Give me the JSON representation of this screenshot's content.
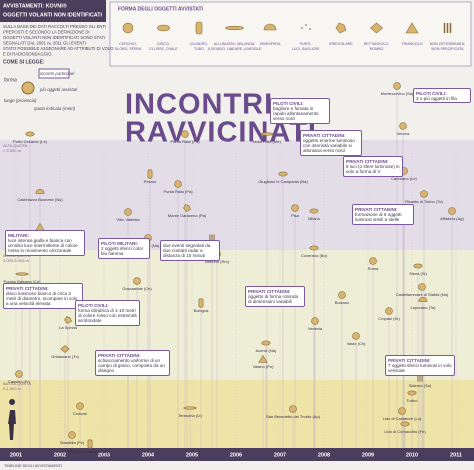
{
  "header": {
    "title_lines": [
      "AVVISTAMENTI: KOVNI®",
      "OGGETTI VOLANTI NON IDENTIFICATI"
    ],
    "intro_lines": [
      "SULLA BASE DEI DATI RACCOLTI PRESSO GLI ENTI",
      "PREPOSTI E SECONDO LA DEFINIZIONE DI",
      "OGGETTI VOLANTI NON IDENTIFICATI SONO STATI",
      "SEGNALATI DAL 2001 AL 2011 GLI EVENTI",
      "STATO POSSIBILE ASSEGNARE AD ATTRIBUTI DI VOLO",
      "E DI RADIOSONDAGGIO."
    ]
  },
  "how_to_read": {
    "title": "COME SI LEGGE:",
    "labels": [
      "forma",
      "incontri particolari",
      "più oggetti avvistati",
      "luogo (provincia)",
      "quota indicata (metri)"
    ]
  },
  "shapes": {
    "title": "FORMA DEGLI OGGETTI AVVISTATI",
    "items": [
      [
        "CERCHIO,",
        "GLOBO, SFERA"
      ],
      [
        "DISCO,",
        "ELLISSE, OVALE"
      ],
      [
        "CILINDRO,",
        "TUBO"
      ],
      [
        "ALLUNGATA, OBLUNGA,",
        "A SIGARO, LINEARE, A MISSILE"
      ],
      [
        "SEMISFERA"
      ],
      [
        "PUNTI,",
        "LUCI, BAGLIORI"
      ],
      [
        "IRREGOLARE"
      ],
      [
        "RETTANGOLO,",
        "ROMBO"
      ],
      [
        "TRIANGOLO"
      ],
      [
        "NON DETERMINATA,",
        "NON SPECIFICATA"
      ]
    ]
  },
  "title": [
    "INCONTRI",
    "RAVVICINATI"
  ],
  "zones": [
    [
      "ALTA QUOTA",
      "> 5.000 m"
    ],
    [
      "MEDIA QUOTA",
      "2.000-5.000 m"
    ],
    [
      "BASSA QUOTA",
      "0-1.000 m"
    ]
  ],
  "timeline": {
    "label": "TIMELINE DEGLI AVVISTAMENTI",
    "years": [
      "2001",
      "2002",
      "2003",
      "2004",
      "2005",
      "2006",
      "2007",
      "2008",
      "2009",
      "2010",
      "2011"
    ]
  },
  "sightings": [
    "Montecorvino (Sa)",
    "Porto Cesareo (Le)",
    "Punta Raisi (Pa)",
    "Isola Folle (Me)",
    "Verona",
    "Pesaro",
    "Punta Raisi (Pa)",
    "Giugliano in Campania (Na)",
    "Carenano (Le)",
    "Castelazzo Bosnese (Nu)",
    "Vibo Valentia",
    "Monte Garaceno (Pa)",
    "Pisa",
    "Milano",
    "Ricadia di Torino (To)",
    "Signa (Fi)",
    "Affadera (Ag)",
    "Canova Balnea (Cs)",
    "Procida (Na)",
    "Firenze",
    "Nettuno (Rm)",
    "Coverano (Bo)",
    "Roma",
    "Poggio Balsana (Ce)",
    "Grazzanide (Ce)",
    "Bologna",
    "Bolzano",
    "Siena (Si)",
    "Castellammare di Stabia (Na)",
    "Leporano (Ta)",
    "Cropani (Kr)",
    "La Spezia",
    "Venezia",
    "Acerra (Na)",
    "Vasto (Ch)",
    "Orbassano (To)",
    "Pomigliano d'Arco (Na)",
    "Vaiano (Po)",
    "Cassino (Fr)",
    "Salerno (Sa)",
    "Crotone",
    "Torino",
    "San Benedetto del Tronto (Ap)",
    "Terracina (Lt)",
    "Stradella (Pv)",
    "Pescara Cassese (Sv)",
    "Lido di Camaiore (Lu)",
    "Lido di Comacchio (Fe)"
  ],
  "notes": [
    {
      "who": "PILOTI CIVILI:",
      "text": "bagliore e fumata in rapido allontanamento verso nord"
    },
    {
      "who": "PRIVATI CITTADINI:",
      "text": "oggetto enorme luminoso con intensità variabile si allontana verso nord"
    },
    {
      "who": "PILOTI CIVILI:",
      "text": "3 o più oggetti in fila"
    },
    {
      "who": "PRIVATI CITTADINI:",
      "text": "9 luci (o sfere luminose) in volo a forma di V"
    },
    {
      "who": "PRIVATI CITTADINI:",
      "text": "formazione di 6 oggetti luminosi simili a stelle"
    },
    {
      "who": "MILITARI:",
      "text": "luce intensa gialla e bianca con un'altra luce intermittente di colore rosso in movimento orizzontale"
    },
    {
      "who": "PILOTI MILITARI:",
      "text": "2 oggetti sferici color blu fiamma"
    },
    {
      "who": "",
      "text": "due eventi segnalati da due contatti radar a distanza di 10 minuti"
    },
    {
      "who": "PRIVATI CITTADINI:",
      "text": "disco luminoso bianco di circa 3 metri di diametro, scompare in volo a una velocità elevata"
    },
    {
      "who": "PILOTI CIVILI:",
      "text": "forma cilindrica di 1-10 metri di colore rosso con estremità arrotondate"
    },
    {
      "who": "PRIVATI CITTADINI:",
      "text": "schiacciamento uniforme di un campo di grano, composto da un disegno"
    },
    {
      "who": "PRIVATI CITTADINI:",
      "text": "oggetto di forma rotonda di dimensioni variabili"
    },
    {
      "who": "PRIVATI CITTADINI:",
      "text": "7 oggetti sferici luminosi in volo verticale"
    }
  ]
}
